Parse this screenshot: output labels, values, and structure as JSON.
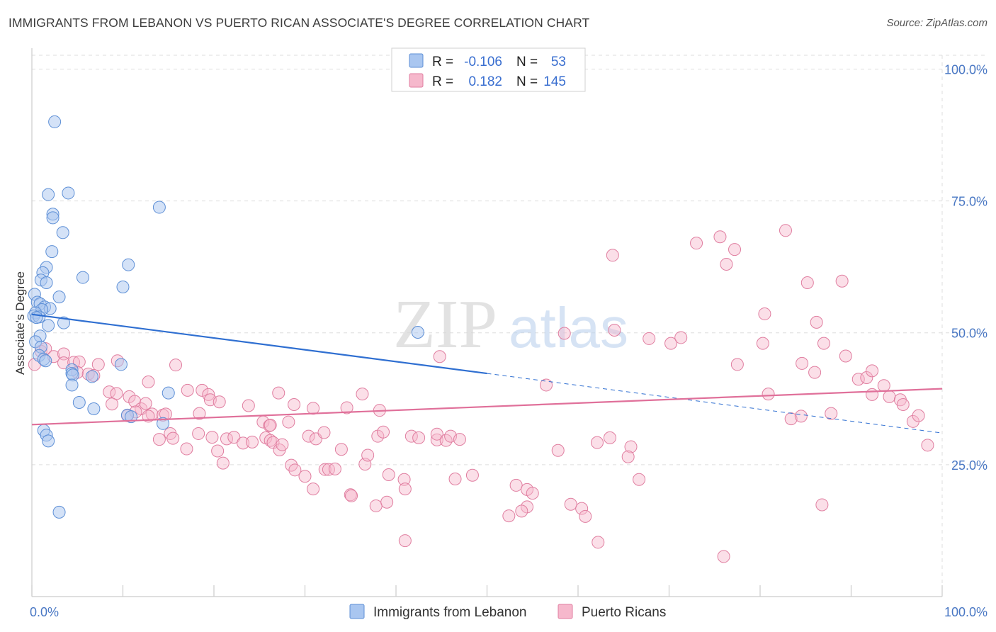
{
  "header": {
    "title": "IMMIGRANTS FROM LEBANON VS PUERTO RICAN ASSOCIATE'S DEGREE CORRELATION CHART",
    "source": "Source: ZipAtlas.com"
  },
  "watermark": {
    "zip": "ZIP",
    "atlas": "atlas"
  },
  "colors": {
    "lebanon_fill": "#a9c6f0",
    "lebanon_stroke": "#5d8fd6",
    "lebanon_line": "#2f6fd1",
    "pr_fill": "#f6b8cc",
    "pr_stroke": "#e07ea0",
    "pr_line": "#e0709a",
    "tick": "#4a78c4",
    "grid": "#dddddd"
  },
  "legend": {
    "rows": [
      {
        "r_label": "R =",
        "r_value": "-0.106",
        "n_label": "N =",
        "n_value": "53"
      },
      {
        "r_label": "R =",
        "r_value": "0.182",
        "n_label": "N =",
        "n_value": "145"
      }
    ]
  },
  "chart_data": {
    "type": "scatter",
    "xlabel": "",
    "ylabel": "Associate's Degree",
    "xlim": [
      0,
      100
    ],
    "ylim": [
      0,
      100
    ],
    "x_tick_labels": [
      "0.0%",
      "100.0%"
    ],
    "y_ticks": [
      {
        "value": 25,
        "label": "25.0%"
      },
      {
        "value": 50,
        "label": "50.0%"
      },
      {
        "value": 75,
        "label": "75.0%"
      },
      {
        "value": 100,
        "label": "100.0%"
      }
    ],
    "grid": true,
    "legend_position": "bottom-center",
    "series": [
      {
        "name": "Immigrants from Lebanon",
        "R": -0.106,
        "N": 53,
        "trend": {
          "x0": 0,
          "y0": 53.5,
          "x1": 50,
          "y1": 42.3,
          "dash_to_x": 100,
          "dash_to_y": 31
        },
        "points": [
          [
            2.5,
            90
          ],
          [
            4,
            76.5
          ],
          [
            1.8,
            76.2
          ],
          [
            2.3,
            72.5
          ],
          [
            2.3,
            71.8
          ],
          [
            14,
            73.8
          ],
          [
            3.4,
            69
          ],
          [
            2.2,
            65.4
          ],
          [
            10.6,
            62.9
          ],
          [
            1.6,
            62.4
          ],
          [
            1.2,
            61.4
          ],
          [
            5.6,
            60.5
          ],
          [
            1.0,
            60
          ],
          [
            1.6,
            59.5
          ],
          [
            10,
            58.7
          ],
          [
            0.3,
            57.3
          ],
          [
            3,
            56.8
          ],
          [
            0.6,
            55.8
          ],
          [
            0.9,
            55.5
          ],
          [
            1.4,
            54.9
          ],
          [
            2.0,
            54.6
          ],
          [
            1.1,
            54.4
          ],
          [
            0.4,
            53.8
          ],
          [
            0.2,
            53.2
          ],
          [
            0.8,
            53.0
          ],
          [
            0.5,
            52.9
          ],
          [
            3.5,
            51.9
          ],
          [
            1.8,
            51.4
          ],
          [
            42.4,
            50.1
          ],
          [
            0.9,
            49.4
          ],
          [
            0.4,
            48.3
          ],
          [
            1.0,
            47.3
          ],
          [
            0.8,
            45.7
          ],
          [
            1.3,
            45.0
          ],
          [
            1.5,
            44.7
          ],
          [
            9.8,
            44.0
          ],
          [
            4.4,
            43
          ],
          [
            4.4,
            42.3
          ],
          [
            4.5,
            42
          ],
          [
            6.6,
            41.7
          ],
          [
            4.4,
            40.1
          ],
          [
            15,
            38.6
          ],
          [
            5.2,
            36.8
          ],
          [
            6.8,
            35.6
          ],
          [
            10.5,
            34.4
          ],
          [
            10.9,
            34.1
          ],
          [
            14.4,
            32.8
          ],
          [
            1.3,
            31.5
          ],
          [
            1.6,
            30.6
          ],
          [
            1.8,
            29.5
          ],
          [
            3.0,
            16
          ]
        ]
      },
      {
        "name": "Puerto Ricans",
        "R": 0.182,
        "N": 145,
        "trend": {
          "x0": 0,
          "y0": 32.6,
          "x1": 100,
          "y1": 39.4
        },
        "points": [
          [
            0.3,
            44
          ],
          [
            1,
            46.5
          ],
          [
            1.5,
            47
          ],
          [
            2.4,
            45.5
          ],
          [
            3.5,
            46
          ],
          [
            3.5,
            44.3
          ],
          [
            4.6,
            44.4
          ],
          [
            5.2,
            44.5
          ],
          [
            7.3,
            44
          ],
          [
            9.4,
            44.7
          ],
          [
            5,
            42.5
          ],
          [
            6.2,
            42.2
          ],
          [
            6.8,
            41.9
          ],
          [
            8.5,
            38.8
          ],
          [
            9.3,
            38.5
          ],
          [
            10.7,
            37.9
          ],
          [
            8.8,
            36.5
          ],
          [
            11.3,
            37
          ],
          [
            12,
            35.6
          ],
          [
            12.5,
            36.6
          ],
          [
            11.4,
            35
          ],
          [
            10.5,
            34.3
          ],
          [
            13.2,
            34.6
          ],
          [
            14.4,
            34.4
          ],
          [
            14.7,
            34.6
          ],
          [
            12.8,
            34.2
          ],
          [
            15.8,
            43.9
          ],
          [
            12.8,
            40.7
          ],
          [
            17.1,
            39.1
          ],
          [
            18.7,
            39.1
          ],
          [
            19.4,
            38.3
          ],
          [
            19.6,
            37.3
          ],
          [
            20.6,
            36.9
          ],
          [
            18.4,
            34.7
          ],
          [
            23.8,
            36.2
          ],
          [
            27.1,
            38.6
          ],
          [
            28.8,
            36.4
          ],
          [
            30.9,
            35.7
          ],
          [
            34.6,
            35.8
          ],
          [
            36.3,
            38.4
          ],
          [
            38.2,
            35.3
          ],
          [
            14.0,
            29.8
          ],
          [
            15.2,
            30.9
          ],
          [
            15.5,
            30.0
          ],
          [
            17,
            28
          ],
          [
            18.3,
            30.9
          ],
          [
            19.8,
            30.2
          ],
          [
            20.4,
            27.6
          ],
          [
            21,
            25.3
          ],
          [
            21.4,
            29.9
          ],
          [
            22.2,
            30.2
          ],
          [
            23.2,
            29.1
          ],
          [
            24.2,
            29.3
          ],
          [
            25.4,
            33.1
          ],
          [
            25.7,
            30.1
          ],
          [
            26.1,
            32.4
          ],
          [
            26.2,
            29.6
          ],
          [
            26.5,
            29.2
          ],
          [
            26.2,
            32.5
          ],
          [
            27.2,
            27.8
          ],
          [
            27.5,
            28.8
          ],
          [
            28.2,
            33.1
          ],
          [
            28.5,
            24.9
          ],
          [
            28.9,
            24
          ],
          [
            30.0,
            22.8
          ],
          [
            30.4,
            30.4
          ],
          [
            31.2,
            29.9
          ],
          [
            30.9,
            20.4
          ],
          [
            32.1,
            31.1
          ],
          [
            32.2,
            24.1
          ],
          [
            32.6,
            24.1
          ],
          [
            33.3,
            24.2
          ],
          [
            34,
            27.9
          ],
          [
            35,
            19.3
          ],
          [
            35.1,
            19.1
          ],
          [
            36.6,
            25.1
          ],
          [
            36.9,
            26.8
          ],
          [
            37.8,
            17.2
          ],
          [
            39,
            17.9
          ],
          [
            38.0,
            30.4
          ],
          [
            38.6,
            31.2
          ],
          [
            39.2,
            23.1
          ],
          [
            40.9,
            22.2
          ],
          [
            41,
            20.4
          ],
          [
            41.7,
            30.4
          ],
          [
            42.5,
            30.1
          ],
          [
            44.5,
            29.7
          ],
          [
            44.5,
            30.8
          ],
          [
            45.5,
            29.6
          ],
          [
            44.8,
            45.5
          ],
          [
            46.5,
            22.3
          ],
          [
            48.4,
            23
          ],
          [
            52.4,
            15.3
          ],
          [
            53.2,
            21.1
          ],
          [
            54.4,
            17
          ],
          [
            54.4,
            20.3
          ],
          [
            41,
            10.6
          ],
          [
            56.5,
            40.1
          ],
          [
            57.8,
            27.7
          ],
          [
            58.5,
            49.9
          ],
          [
            60.4,
            16.7
          ],
          [
            62.1,
            29.2
          ],
          [
            62.2,
            10.3
          ],
          [
            63.8,
            64.7
          ],
          [
            64,
            50.5
          ],
          [
            65.8,
            28.4
          ],
          [
            66.7,
            22.2
          ],
          [
            67.8,
            48.9
          ],
          [
            70.2,
            48.0
          ],
          [
            71.3,
            49.1
          ],
          [
            73,
            67
          ],
          [
            75.6,
            68.2
          ],
          [
            76.3,
            63.0
          ],
          [
            76,
            7.6
          ],
          [
            77.2,
            65.8
          ],
          [
            77.5,
            44.0
          ],
          [
            80.3,
            48.0
          ],
          [
            80.5,
            53.6
          ],
          [
            80.9,
            38.4
          ],
          [
            82.8,
            69.4
          ],
          [
            83.4,
            33.7
          ],
          [
            84.5,
            34.2
          ],
          [
            84.6,
            44.2
          ],
          [
            85.2,
            59.5
          ],
          [
            86,
            42.5
          ],
          [
            86.2,
            52
          ],
          [
            86.8,
            17.4
          ],
          [
            87,
            48
          ],
          [
            87.8,
            34.7
          ],
          [
            89.0,
            59.8
          ],
          [
            89.4,
            45.6
          ],
          [
            90.8,
            41.2
          ],
          [
            91.7,
            41.5
          ],
          [
            92.3,
            42.8
          ],
          [
            92.3,
            38.3
          ],
          [
            93.6,
            40.0
          ],
          [
            94.2,
            37.9
          ],
          [
            95.4,
            37.3
          ],
          [
            95.7,
            36.4
          ],
          [
            96.8,
            33.2
          ],
          [
            97.4,
            34.3
          ],
          [
            98.4,
            28.7
          ],
          [
            46,
            30.4
          ],
          [
            47,
            29.8
          ],
          [
            55,
            19.6
          ],
          [
            53.8,
            16.2
          ],
          [
            59.2,
            17.5
          ],
          [
            60.8,
            15.2
          ],
          [
            63.5,
            30.1
          ],
          [
            65.5,
            26.5
          ]
        ]
      }
    ]
  },
  "bottom_legend": {
    "items": [
      {
        "label": "Immigrants from Lebanon"
      },
      {
        "label": "Puerto Ricans"
      }
    ]
  }
}
